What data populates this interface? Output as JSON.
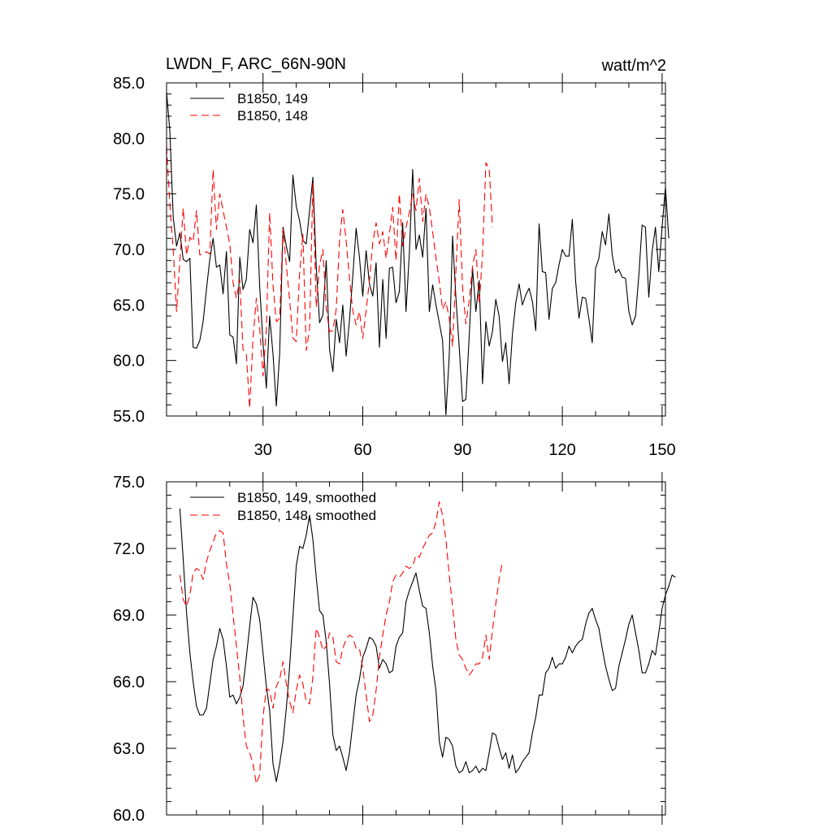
{
  "chart_data": [
    {
      "type": "line",
      "title": "LWDN_F, ARC_66N-90N",
      "units": "watt/m^2",
      "xlim": [
        1,
        151
      ],
      "ylim": [
        55,
        85
      ],
      "yticks": [
        55,
        60,
        65,
        70,
        75,
        80,
        85
      ],
      "ytick_labels": [
        "55.0",
        "60.0",
        "65.0",
        "70.0",
        "75.0",
        "80.0",
        "85.0"
      ],
      "xticks": [
        30,
        60,
        90,
        120,
        150
      ],
      "xtick_labels": [
        "30",
        "60",
        "90",
        "120",
        "150"
      ],
      "legend_location": "top-left",
      "series": [
        {
          "name": "B1850, 149",
          "color": "#000000",
          "style": "solid",
          "values": [
            84.2,
            80.6,
            72.9,
            70.3,
            71.5,
            69.1,
            68.9,
            69.2,
            61.2,
            61.1,
            61.8,
            63.5,
            66.4,
            69.1,
            71.0,
            68.4,
            68.6,
            66.0,
            69.8,
            62.3,
            62.1,
            59.7,
            69.3,
            66.4,
            67.3,
            71.8,
            70.6,
            74.0,
            66.7,
            61.6,
            57.5,
            64.0,
            60.6,
            55.9,
            60.6,
            72.0,
            70.3,
            68.9,
            76.7,
            73.9,
            72.6,
            70.8,
            70.5,
            73.5,
            76.5,
            68.5,
            63.4,
            64.1,
            69.0,
            61.0,
            59.0,
            63.7,
            61.6,
            65.0,
            60.4,
            63.6,
            67.6,
            71.9,
            69.3,
            65.8,
            69.9,
            66.9,
            65.8,
            68.8,
            61.2,
            67.3,
            62.0,
            68.3,
            68.4,
            65.2,
            66.2,
            72.4,
            64.4,
            69.6,
            77.2,
            70.0,
            71.3,
            69.3,
            73.7,
            64.4,
            66.8,
            65.0,
            63.4,
            61.8,
            55.1,
            60.4,
            71.2,
            65.7,
            61.2,
            56.3,
            56.5,
            62.2,
            68.3,
            64.4,
            67.2,
            57.9,
            63.5,
            61.3,
            62.6,
            65.5,
            64.0,
            59.9,
            61.6,
            57.9,
            62.4,
            65.2,
            66.9,
            65.0,
            65.9,
            66.5,
            65.3,
            62.7,
            72.3,
            68.0,
            67.9,
            63.7,
            66.5,
            67.0,
            68.6,
            70.0,
            69.4,
            69.4,
            72.7,
            67.1,
            63.8,
            65.7,
            65.6,
            63.7,
            61.6,
            68.3,
            69.2,
            71.6,
            70.4,
            73.2,
            69.5,
            67.9,
            68.2,
            67.5,
            67.4,
            64.4,
            63.2,
            64.0,
            67.7,
            72.2,
            72.0,
            65.7,
            69.8,
            72.0,
            68.0,
            72.0,
            75.6,
            71.0
          ]
        },
        {
          "name": "B1850, 148",
          "color": "#ff0000",
          "style": "dashed",
          "values": [
            79.3,
            74.0,
            70.0,
            64.4,
            69.0,
            73.7,
            69.5,
            71.1,
            70.7,
            73.5,
            69.5,
            69.6,
            69.8,
            69.6,
            77.2,
            71.8,
            75.0,
            73.5,
            72.0,
            70.5,
            67.0,
            65.6,
            67.3,
            61.0,
            60.6,
            55.7,
            62.0,
            65.6,
            63.0,
            58.6,
            62.8,
            73.3,
            66.8,
            63.5,
            63.8,
            71.8,
            68.6,
            65.4,
            62.0,
            61.7,
            67.8,
            71.4,
            60.9,
            62.8,
            76.0,
            64.8,
            68.6,
            70.0,
            64.7,
            62.6,
            62.7,
            64.6,
            70.8,
            73.6,
            70.8,
            67.4,
            64.5,
            63.2,
            64.4,
            62.0,
            64.5,
            67.2,
            70.6,
            72.4,
            70.5,
            71.6,
            69.2,
            71.4,
            73.8,
            69.0,
            75.0,
            70.3,
            72.0,
            73.3,
            75.0,
            73.5,
            76.4,
            72.5,
            75.0,
            73.8,
            71.6,
            69.2,
            67.1,
            64.6,
            65.3,
            63.8,
            61.3,
            68.0,
            74.5,
            66.6,
            63.3,
            65.4,
            68.5,
            70.0,
            65.1,
            69.5,
            77.8,
            77.3,
            72.0
          ]
        }
      ]
    },
    {
      "type": "line",
      "title": "",
      "units": "",
      "xlim": [
        1,
        151
      ],
      "ylim": [
        60,
        75
      ],
      "yticks": [
        60,
        63,
        66,
        69,
        72,
        75
      ],
      "ytick_labels": [
        "60.0",
        "63.0",
        "66.0",
        "69.0",
        "72.0",
        "75.0"
      ],
      "xticks": [
        30,
        60,
        90,
        120,
        150
      ],
      "xtick_labels": [],
      "legend_location": "top-left",
      "series": [
        {
          "name": "B1850, 149, smoothed",
          "color": "#000000",
          "style": "solid",
          "x_start": 5,
          "values": [
            73.8,
            71.5,
            69.1,
            67.3,
            66.0,
            64.9,
            64.5,
            64.5,
            64.8,
            65.9,
            67.0,
            67.6,
            68.4,
            67.9,
            66.7,
            65.3,
            65.4,
            65.0,
            65.3,
            65.8,
            67.1,
            68.5,
            69.8,
            69.5,
            68.8,
            67.3,
            65.8,
            64.7,
            62.3,
            61.5,
            62.3,
            63.3,
            64.8,
            66.7,
            68.9,
            71.2,
            72.1,
            72.0,
            72.6,
            73.5,
            72.4,
            70.7,
            69.2,
            69.0,
            67.8,
            65.9,
            63.6,
            62.9,
            63.1,
            62.6,
            62.0,
            62.8,
            64.1,
            65.4,
            66.1,
            67.1,
            67.5,
            68.0,
            67.9,
            67.6,
            66.6,
            67.0,
            66.8,
            66.4,
            66.5,
            67.6,
            68.0,
            68.2,
            69.6,
            70.1,
            70.5,
            70.9,
            70.1,
            69.4,
            69.3,
            68.2,
            66.7,
            65.6,
            63.3,
            62.6,
            63.5,
            63.4,
            63.1,
            62.2,
            61.9,
            62.0,
            62.4,
            61.9,
            62.0,
            62.2,
            61.9,
            62.1,
            62.0,
            62.8,
            63.7,
            63.6,
            63.0,
            62.5,
            62.8,
            62.1,
            62.7,
            61.9,
            62.1,
            62.4,
            62.6,
            62.8,
            63.7,
            64.4,
            65.4,
            65.4,
            66.4,
            66.6,
            67.1,
            66.6,
            66.8,
            66.8,
            67.1,
            67.6,
            67.3,
            67.6,
            67.8,
            67.9,
            68.6,
            69.1,
            69.3,
            68.8,
            68.4,
            67.5,
            66.7,
            66.1,
            65.6,
            65.7,
            66.7,
            67.3,
            67.9,
            68.6,
            69.0,
            68.2,
            67.4,
            66.4,
            66.4,
            66.8,
            67.4,
            67.2,
            68.2,
            69.3,
            69.9,
            70.3,
            70.8,
            70.7
          ]
        },
        {
          "name": "B1850, 148, smoothed",
          "color": "#ff0000",
          "style": "dashed",
          "x_start": 5,
          "values": [
            70.8,
            69.7,
            69.4,
            69.9,
            70.9,
            71.1,
            71.0,
            70.6,
            71.4,
            71.9,
            72.3,
            72.7,
            72.8,
            72.7,
            71.3,
            70.4,
            69.0,
            67.6,
            66.2,
            64.4,
            63.1,
            62.8,
            62.3,
            61.4,
            61.8,
            64.4,
            65.7,
            65.6,
            64.8,
            65.8,
            66.1,
            66.9,
            65.9,
            65.1,
            64.6,
            65.6,
            66.3,
            65.9,
            65.1,
            65.0,
            66.2,
            68.4,
            68.0,
            67.4,
            67.6,
            68.2,
            68.0,
            66.9,
            66.8,
            67.5,
            67.9,
            68.1,
            68.0,
            67.5,
            67.5,
            66.6,
            65.4,
            64.2,
            64.5,
            65.6,
            67.1,
            68.1,
            69.0,
            69.6,
            70.5,
            70.8,
            70.7,
            70.9,
            71.2,
            71.1,
            71.2,
            71.7,
            71.6,
            72.0,
            72.3,
            72.6,
            72.7,
            73.2,
            74.1,
            73.5,
            72.4,
            70.8,
            69.4,
            67.9,
            67.2,
            67.0,
            66.6,
            66.3,
            66.5,
            66.8,
            66.8,
            67.1,
            68.1,
            67.0,
            68.3,
            69.5,
            70.6,
            71.4
          ]
        }
      ]
    }
  ]
}
